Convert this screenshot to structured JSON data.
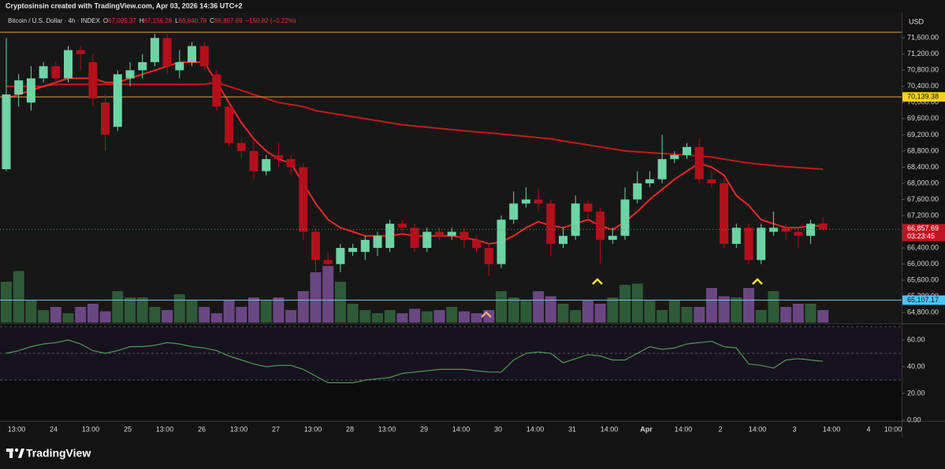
{
  "header": {
    "caption": "Cryptosinsin created with TradingView.com, Apr 03, 2026 14:36 UTC+2",
    "symbol": "Bitcoin / U.S. Dollar · 4h · INDEX",
    "ohlc": [
      {
        "key": "O",
        "text": "67,005.37"
      },
      {
        "key": "H",
        "text": "67,156.28"
      },
      {
        "key": "L",
        "text": "66,840.78"
      },
      {
        "key": "C",
        "text": "66,857.69"
      }
    ],
    "change": "−150.82 (−0.22%)"
  },
  "footer": {
    "brand": "TradingView"
  },
  "chart_data": [
    {
      "type": "candlestick",
      "currency": "USD",
      "up_color": "#6fd3a5",
      "down_color": "#b3101c",
      "open": [
        68350,
        70200,
        70000,
        70600,
        70900,
        70600,
        71300,
        71000,
        70000,
        69400,
        70600,
        70800,
        71000,
        71600,
        70800,
        71000,
        71400,
        70700,
        69900,
        69000,
        68800,
        68300,
        68700,
        68600,
        68400,
        66800,
        66100,
        66000,
        66300,
        66300,
        66400,
        66400,
        67000,
        66900,
        66400,
        66800,
        66700,
        66800,
        66600,
        66400,
        66000,
        67100,
        67500,
        67600,
        67500,
        66500,
        66700,
        67500,
        67300,
        66600,
        66700,
        67600,
        68000,
        68100,
        68600,
        68700,
        68900,
        68100,
        68000,
        66500,
        66900,
        66100,
        66800,
        66900,
        66800,
        66700,
        67005.37
      ],
      "high": [
        71600,
        70700,
        70900,
        71000,
        71000,
        71400,
        71400,
        71200,
        70200,
        70800,
        71000,
        71200,
        71700,
        71700,
        71300,
        71500,
        71500,
        70800,
        70000,
        69100,
        69100,
        68700,
        69000,
        68700,
        68500,
        66900,
        66300,
        66500,
        66500,
        66700,
        66800,
        67100,
        67100,
        67000,
        66900,
        66900,
        66900,
        66900,
        66700,
        66500,
        67200,
        67800,
        67900,
        67900,
        67600,
        66900,
        67700,
        67600,
        67400,
        66900,
        67900,
        68300,
        68300,
        69200,
        68800,
        69000,
        69100,
        68300,
        68100,
        67000,
        67000,
        67000,
        67300,
        67000,
        66900,
        67100,
        67156.28
      ],
      "low": [
        68300,
        69900,
        69800,
        70500,
        70400,
        70500,
        70800,
        69900,
        68800,
        69300,
        70400,
        70600,
        70900,
        70700,
        70600,
        70900,
        70800,
        69800,
        68900,
        68600,
        68100,
        68200,
        68400,
        68200,
        66600,
        65800,
        65900,
        65800,
        66200,
        66100,
        66200,
        66300,
        66800,
        66300,
        66300,
        66600,
        66600,
        66400,
        66300,
        65700,
        65900,
        67000,
        67400,
        67300,
        66200,
        66400,
        66600,
        67100,
        66000,
        66500,
        66600,
        67500,
        67900,
        68000,
        68500,
        68600,
        68000,
        67900,
        66400,
        66400,
        66000,
        66000,
        66700,
        66600,
        66400,
        66500,
        66840.78
      ],
      "close": [
        70200,
        70550,
        70600,
        70900,
        70600,
        71300,
        71200,
        70100,
        69200,
        70700,
        70800,
        71000,
        71600,
        70900,
        71000,
        71400,
        70900,
        69900,
        69000,
        68800,
        68300,
        68600,
        68600,
        68400,
        66800,
        66100,
        66000,
        66400,
        66400,
        66600,
        66700,
        67000,
        66900,
        66400,
        66800,
        66700,
        66800,
        66600,
        66400,
        66000,
        67100,
        67500,
        67600,
        67500,
        66500,
        66700,
        67500,
        67300,
        66600,
        66700,
        67600,
        68000,
        68100,
        68600,
        68700,
        68900,
        68100,
        68000,
        66500,
        66900,
        66100,
        66900,
        66900,
        66800,
        66700,
        67000,
        66857.69
      ],
      "volume": [
        65,
        82,
        35,
        20,
        25,
        15,
        25,
        30,
        18,
        50,
        40,
        40,
        25,
        20,
        45,
        35,
        25,
        15,
        35,
        25,
        40,
        35,
        40,
        20,
        50,
        80,
        90,
        65,
        30,
        20,
        15,
        20,
        15,
        22,
        18,
        20,
        25,
        18,
        15,
        20,
        50,
        40,
        35,
        50,
        42,
        30,
        20,
        35,
        30,
        40,
        60,
        62,
        35,
        20,
        35,
        25,
        25,
        55,
        42,
        40,
        55,
        20,
        50,
        25,
        30,
        30,
        20
      ],
      "volume_up_color": "#2f5a37",
      "volume_down_color": "#6a4782",
      "ribbon_fast": [
        70100,
        70200,
        70300,
        70400,
        70500,
        70600,
        70600,
        70600,
        70500,
        70500,
        70600,
        70700,
        70800,
        70900,
        71000,
        71000,
        71000,
        70500,
        70000,
        69500,
        69100,
        68800,
        68600,
        68500,
        68000,
        67500,
        67100,
        66900,
        66800,
        66700,
        66700,
        66700,
        66750,
        66700,
        66700,
        66700,
        66700,
        66650,
        66600,
        66500,
        66550,
        66700,
        66900,
        67050,
        66950,
        66900,
        67000,
        67100,
        66950,
        66850,
        67050,
        67300,
        67600,
        67850,
        68100,
        68300,
        68500,
        68400,
        68200,
        67700,
        67450,
        67100,
        67000,
        66900,
        66900,
        66950,
        66950
      ],
      "ribbon_slow": [
        70400,
        70400,
        70400,
        70400,
        70450,
        70450,
        70450,
        70450,
        70450,
        70450,
        70450,
        70450,
        70450,
        70450,
        70450,
        70450,
        70450,
        70500,
        70400,
        70300,
        70200,
        70100,
        70000,
        69950,
        69900,
        69800,
        69750,
        69700,
        69650,
        69600,
        69550,
        69500,
        69450,
        69420,
        69390,
        69360,
        69330,
        69300,
        69270,
        69250,
        69220,
        69190,
        69160,
        69130,
        69100,
        69050,
        69000,
        68950,
        68900,
        68850,
        68800,
        68780,
        68760,
        68740,
        68720,
        68700,
        68680,
        68650,
        68600,
        68550,
        68500,
        68470,
        68440,
        68410,
        68390,
        68370,
        68350
      ],
      "ribbon_fast_color": "#ff2b2b",
      "ribbon_slow_color": "#d41c1c",
      "price_lines": [
        {
          "value": 71740,
          "color": "#e8a040"
        },
        {
          "value": 70139.38,
          "label": "70,139.38",
          "color": "#e8a040",
          "label_color": "#f7d21c"
        },
        {
          "value": 65107.17,
          "label": "65,107.17",
          "color": "#7cc3ec",
          "label_color": "#4fc3f7"
        }
      ],
      "last_price": {
        "value": 66857.69,
        "label": "66,857.69",
        "countdown": "03:23:45",
        "color": "#c01420"
      },
      "ylim": [
        64550,
        72150
      ],
      "yticks": [
        {
          "value": 64800,
          "label": "64,800.00"
        },
        {
          "value": 65200,
          "label": "65,200.00"
        },
        {
          "value": 65600,
          "label": "65,600.00"
        },
        {
          "value": 66000,
          "label": "66,000.00"
        },
        {
          "value": 66400,
          "label": "66,400.00"
        },
        {
          "value": 66800,
          "label": "66,800.00"
        },
        {
          "value": 67200,
          "label": "67,200.00"
        },
        {
          "value": 67600,
          "label": "67,600.00"
        },
        {
          "value": 68000,
          "label": "68,000.00"
        },
        {
          "value": 68400,
          "label": "68,400.00"
        },
        {
          "value": 68800,
          "label": "68,800.00"
        },
        {
          "value": 69200,
          "label": "69,200.00"
        },
        {
          "value": 69600,
          "label": "69,600.00"
        },
        {
          "value": 70000,
          "label": "70,000.00"
        },
        {
          "value": 70400,
          "label": "70,400.00"
        },
        {
          "value": 70800,
          "label": "70,800.00"
        },
        {
          "value": 71200,
          "label": "71,200.00"
        },
        {
          "value": 71600,
          "label": "71,600.00"
        }
      ],
      "x_labels": [
        "13:00",
        "24",
        "13:00",
        "25",
        "13:00",
        "26",
        "13:00",
        "27",
        "13:00",
        "28",
        "13:00",
        "29",
        "14:00",
        "30",
        "14:00",
        "31",
        "14:00",
        "Apr",
        "14:00",
        "2",
        "14:00",
        "3",
        "14:00",
        "4",
        "10:00"
      ]
    },
    {
      "type": "line",
      "color": "#4f9a58",
      "values": [
        50,
        52,
        55,
        57,
        58,
        60,
        57,
        52,
        50,
        52,
        55,
        55,
        56,
        58,
        57,
        55,
        54,
        52,
        48,
        45,
        42,
        40,
        41,
        41,
        38,
        33,
        28,
        28,
        28,
        30,
        31,
        32,
        35,
        36,
        37,
        38,
        38,
        38,
        37,
        36,
        36,
        45,
        50,
        51,
        50,
        43,
        46,
        49,
        48,
        45,
        45,
        50,
        55,
        53,
        54,
        57,
        58,
        59,
        55,
        54,
        42,
        41,
        39,
        45,
        46,
        45,
        44
      ],
      "levels": [
        70,
        50,
        30
      ],
      "ylim": [
        0,
        70
      ],
      "yticks": [
        {
          "value": 0,
          "label": "0.00"
        },
        {
          "value": 20,
          "label": "20.00"
        },
        {
          "value": 40,
          "label": "40.00"
        },
        {
          "value": 60,
          "label": "60.00"
        }
      ]
    }
  ]
}
